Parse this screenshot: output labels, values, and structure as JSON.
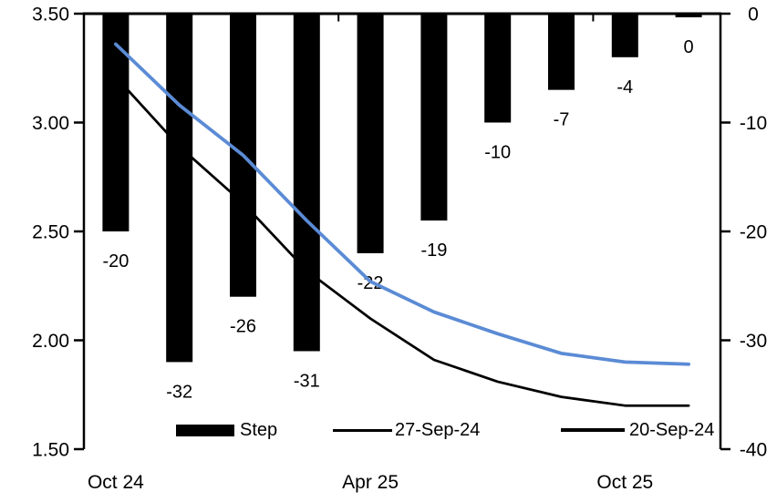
{
  "chart_data": {
    "type": "combo",
    "title": "",
    "num_categories": 10,
    "x_tick_labels": [
      {
        "index": 0,
        "label": "Oct 24"
      },
      {
        "index": 4,
        "label": "Apr 25"
      },
      {
        "index": 8,
        "label": "Oct 25"
      }
    ],
    "x_boundary_tick_indices": [
      0,
      4,
      8
    ],
    "left_axis": {
      "min": 1.5,
      "max": 3.5,
      "tick_labels": [
        "3.50",
        "3.00",
        "2.50",
        "2.00",
        "1.50"
      ]
    },
    "right_axis": {
      "min": -40,
      "max": 0,
      "tick_labels": [
        "0",
        "-10",
        "-20",
        "-30",
        "-40"
      ]
    },
    "grid": false,
    "series": [
      {
        "name": "Step",
        "type": "bar",
        "axis": "right",
        "color": "#000000",
        "values": [
          -20,
          -32,
          -26,
          -31,
          -22,
          -19,
          -10,
          -7,
          -4,
          0
        ],
        "data_labels": [
          "-20",
          "-32",
          "-26",
          "-31",
          "-22",
          "-19",
          "-10",
          "-7",
          "-4",
          "0"
        ]
      },
      {
        "name": "27-Sep-24",
        "type": "line",
        "axis": "left",
        "color": "#000000",
        "stroke_width": 2.75,
        "values": [
          3.21,
          2.89,
          2.63,
          2.32,
          2.1,
          1.91,
          1.81,
          1.74,
          1.7,
          1.7
        ]
      },
      {
        "name": "20-Sep-24",
        "type": "line",
        "axis": "left",
        "color": "#5B8BD5",
        "stroke_width": 3.75,
        "values": [
          3.36,
          3.08,
          2.85,
          2.55,
          2.27,
          2.13,
          2.03,
          1.94,
          1.9,
          1.89
        ]
      }
    ],
    "legend": {
      "position": "bottom-inside",
      "items": [
        "Step",
        "27-Sep-24",
        "20-Sep-24"
      ]
    }
  },
  "colors": {
    "bar": "#000000",
    "line_27sep": "#000000",
    "line_20sep": "#5B8BD5",
    "axis": "#000000",
    "background": "#ffffff"
  }
}
